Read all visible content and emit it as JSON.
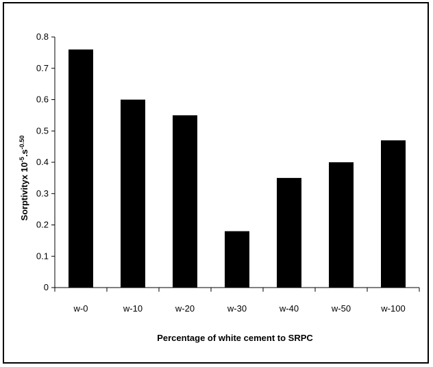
{
  "chart_data": {
    "type": "bar",
    "title": "",
    "xlabel": "Percentage of white cement to SRPC",
    "ylabel": {
      "base": "Sorptivityx 10",
      "exp1": "-5",
      "mid": ".s",
      "exp2": "-0.50"
    },
    "categories": [
      "w-0",
      "w-10",
      "w-20",
      "w-30",
      "w-40",
      "w-50",
      "w-100"
    ],
    "values": [
      0.76,
      0.6,
      0.55,
      0.18,
      0.35,
      0.4,
      0.47
    ],
    "ylim": [
      0,
      0.8
    ],
    "yticks": [
      "0",
      "0.1",
      "0.2",
      "0.3",
      "0.4",
      "0.5",
      "0.6",
      "0.7",
      "0.8"
    ],
    "bar_color": "#000000",
    "grid": false,
    "legend": "none"
  }
}
